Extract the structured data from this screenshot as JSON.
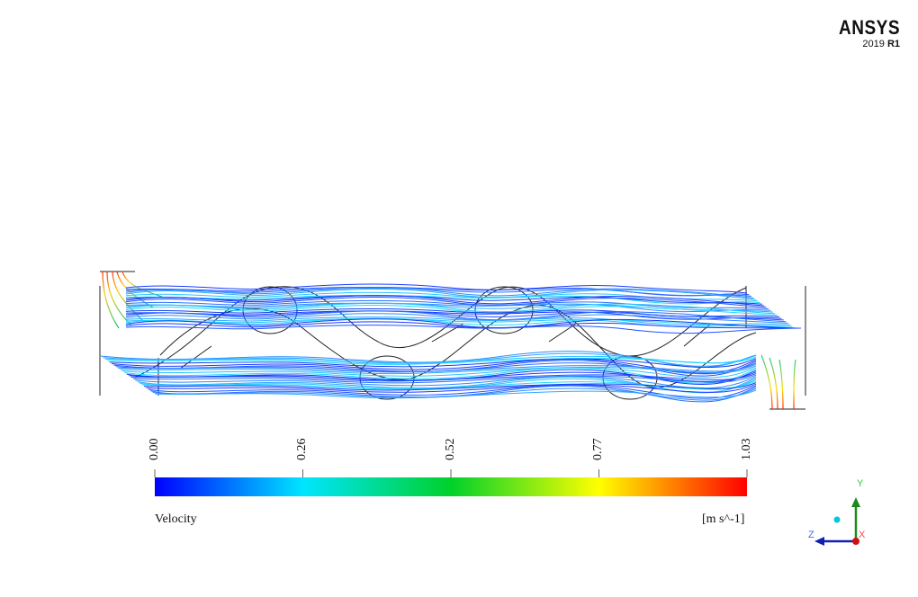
{
  "logo": {
    "brand": "ANSYS",
    "year": "2019",
    "release": "R1"
  },
  "legend": {
    "title": "Velocity",
    "units": "[m s^-1]",
    "ticks": [
      "0.00",
      "0.26",
      "0.52",
      "0.77",
      "1.03"
    ],
    "colormap": [
      "#0000ff",
      "#00e5ff",
      "#00d12a",
      "#ffff00",
      "#ff0000"
    ]
  },
  "triad": {
    "y_label": "Y",
    "z_label": "Z",
    "x_label": "X"
  }
}
